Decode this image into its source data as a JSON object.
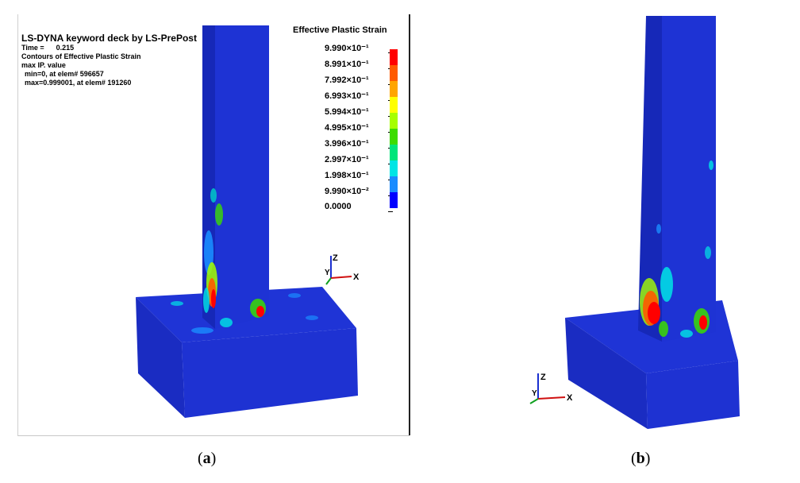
{
  "panel_a": {
    "header": {
      "title": "LS-DYNA keyword deck by LS-PrePost",
      "time_label": "Time =",
      "time_value": "0.215",
      "contours": "Contours of Effective Plastic Strain",
      "max_ip": "max IP. value",
      "min_line": "min=0, at elem# 596657",
      "max_line": "max=0.999001, at elem# 191260"
    },
    "legend": {
      "title": "Effective Plastic Strain",
      "labels": [
        "9.990×10⁻¹",
        "8.991×10⁻¹",
        "7.992×10⁻¹",
        "6.993×10⁻¹",
        "5.994×10⁻¹",
        "4.995×10⁻¹",
        "3.996×10⁻¹",
        "2.997×10⁻¹",
        "1.998×10⁻¹",
        "9.990×10⁻²",
        "0.0000"
      ],
      "colors": [
        "#ff0000",
        "#ff5a00",
        "#ffa500",
        "#ffff00",
        "#a6ff00",
        "#3cdc00",
        "#00e57a",
        "#00e5e5",
        "#1a8cff",
        "#0000ff"
      ]
    },
    "axes": {
      "z": "Z",
      "y": "Y",
      "x": "X"
    },
    "caption": "a"
  },
  "panel_b": {
    "axes": {
      "z": "Z",
      "y": "Y",
      "x": "X"
    },
    "caption": "b"
  },
  "colors": {
    "base_blue": "#1a2fd0",
    "dark_blue": "#1424a8",
    "side_blue": "#2238dc"
  }
}
